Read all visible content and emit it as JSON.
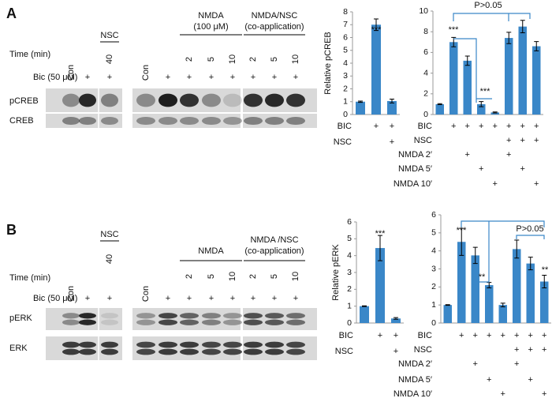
{
  "figure": {
    "panels": [
      {
        "letter": "A",
        "time_label": "Time (min)",
        "bic_label": "Bic (50 μM)",
        "nsc_label": "NSC",
        "nsc_time": "40",
        "con_labels": [
          "Con",
          "Con"
        ],
        "left_bic": [
          "+",
          "+"
        ],
        "groups": [
          {
            "lines": [
              "NMDA",
              "(100 μM)"
            ],
            "times": [
              "2",
              "5",
              "10"
            ]
          },
          {
            "lines": [
              "NMDA/NSC",
              "(co-application)"
            ],
            "times": [
              "2",
              "5",
              "10"
            ]
          }
        ],
        "right_bic": [
          "+",
          "+",
          "+",
          "+",
          "+",
          "+",
          "+"
        ],
        "band_labels": [
          "pCREB",
          "CREB"
        ]
      },
      {
        "letter": "B",
        "time_label": "Time (min)",
        "bic_label": "Bic (50 μM)",
        "nsc_label": "NSC",
        "nsc_time": "40",
        "con_labels": [
          "Con",
          "Con"
        ],
        "left_bic": [
          "+",
          "+"
        ],
        "groups": [
          {
            "lines": [
              "NMDA"
            ],
            "times": [
              "2",
              "5",
              "10"
            ]
          },
          {
            "lines": [
              "NMDA /NSC",
              "(co-application)"
            ],
            "times": [
              "2",
              "5",
              "10"
            ]
          }
        ],
        "right_bic": [
          "+",
          "+",
          "+",
          "+",
          "+",
          "+",
          "+"
        ],
        "band_labels": [
          "pERK",
          "ERK"
        ]
      }
    ]
  },
  "chart_data": [
    {
      "type": "bar",
      "y_label": "Relative pCREB",
      "ylim": [
        0,
        8
      ],
      "yticks": [
        0,
        1,
        2,
        3,
        4,
        5,
        6,
        7,
        8
      ],
      "color": "#3a87c8",
      "values": [
        1,
        7,
        1.05
      ],
      "errors": [
        0.05,
        0.45,
        0.15
      ],
      "annotations": [
        "***"
      ],
      "rows": [
        {
          "label": "BIC",
          "marks": [
            null,
            "+",
            "+"
          ]
        },
        {
          "label": "NSC",
          "marks": [
            null,
            null,
            "+"
          ]
        }
      ]
    },
    {
      "type": "bar",
      "ylim": [
        0,
        10
      ],
      "yticks": [
        0,
        2,
        4,
        6,
        8,
        10
      ],
      "color": "#3a87c8",
      "values": [
        1,
        7,
        5.2,
        1,
        0.2,
        7.4,
        8.5,
        6.6
      ],
      "errors": [
        0.05,
        0.45,
        0.45,
        0.25,
        0.05,
        0.55,
        0.6,
        0.45
      ],
      "annotations": [
        "***",
        "***",
        "P>0.05"
      ],
      "rows": [
        {
          "label": "BIC",
          "marks": [
            null,
            "+",
            "+",
            "+",
            "+",
            "+",
            "+",
            "+"
          ]
        },
        {
          "label": "NSC",
          "marks": [
            null,
            null,
            null,
            null,
            null,
            "+",
            "+",
            "+"
          ]
        },
        {
          "label": "NMDA 2′",
          "marks": [
            null,
            null,
            "+",
            null,
            null,
            "+",
            null,
            null
          ]
        },
        {
          "label": "NMDA 5′",
          "marks": [
            null,
            null,
            null,
            "+",
            null,
            null,
            "+",
            null
          ]
        },
        {
          "label": "NMDA 10′",
          "marks": [
            null,
            null,
            null,
            null,
            "+",
            null,
            null,
            "+"
          ]
        }
      ]
    },
    {
      "type": "bar",
      "y_label": "Relative pERK",
      "ylim": [
        0,
        6
      ],
      "yticks": [
        0,
        1,
        2,
        3,
        4,
        5,
        6
      ],
      "color": "#3a87c8",
      "values": [
        1,
        4.45,
        0.27
      ],
      "errors": [
        0.02,
        0.75,
        0.05
      ],
      "annotations": [
        "***"
      ],
      "rows": [
        {
          "label": "BIC",
          "marks": [
            null,
            "+",
            "+"
          ]
        },
        {
          "label": "NSC",
          "marks": [
            null,
            null,
            "+"
          ]
        }
      ]
    },
    {
      "type": "bar",
      "ylim": [
        0,
        6
      ],
      "yticks": [
        0,
        1,
        2,
        3,
        4,
        5,
        6
      ],
      "color": "#3a87c8",
      "values": [
        1,
        4.5,
        3.75,
        2.1,
        1,
        4.1,
        3.3,
        2.3
      ],
      "errors": [
        0.02,
        0.75,
        0.45,
        0.15,
        0.1,
        0.5,
        0.35,
        0.35
      ],
      "annotations": [
        "***",
        "**",
        "P>0.05",
        "**"
      ],
      "rows": [
        {
          "label": "BIC",
          "marks": [
            null,
            "+",
            "+",
            "+",
            "+",
            "+",
            "+",
            "+"
          ]
        },
        {
          "label": "NSC",
          "marks": [
            null,
            null,
            null,
            null,
            null,
            "+",
            "+",
            "+"
          ]
        },
        {
          "label": "NMDA 2′",
          "marks": [
            null,
            null,
            "+",
            null,
            null,
            "+",
            null,
            null
          ]
        },
        {
          "label": "NMDA 5′",
          "marks": [
            null,
            null,
            null,
            "+",
            null,
            null,
            "+",
            null
          ]
        },
        {
          "label": "NMDA 10′",
          "marks": [
            null,
            null,
            null,
            null,
            "+",
            null,
            null,
            "+"
          ]
        }
      ]
    }
  ]
}
